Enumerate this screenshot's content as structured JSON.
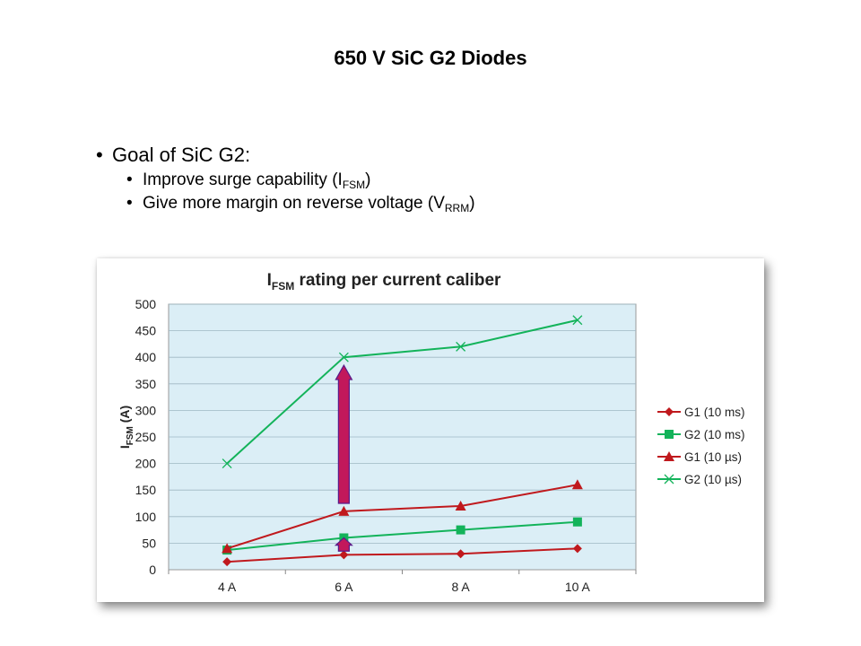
{
  "slide": {
    "title": "650 V SiC G2 Diodes",
    "bullet_main": "Goal of SiC G2:",
    "bullet_sub1": {
      "text": "Improve surge capability (I",
      "sub": "FSM",
      "end": ")"
    },
    "bullet_sub2": {
      "text": "Give more margin on reverse voltage (V",
      "sub": "RRM",
      "end": ")"
    }
  },
  "chart_data": {
    "type": "line",
    "title": {
      "main": "I",
      "sub": "FSM",
      "rest": " rating per current caliber"
    },
    "ylabel": {
      "main": "I",
      "sub": "FSM",
      "rest": " (A)"
    },
    "xlabel": "",
    "categories": [
      "4 A",
      "6 A",
      "8 A",
      "10 A"
    ],
    "ylim": [
      0,
      500
    ],
    "yticks": [
      0,
      50,
      100,
      150,
      200,
      250,
      300,
      350,
      400,
      450,
      500
    ],
    "grid": true,
    "plot_background": "#dbeef6",
    "legend_position": "right",
    "series": [
      {
        "name": "G1 (10 ms)",
        "values": [
          15,
          28,
          30,
          40
        ],
        "color": "#c0191d",
        "marker": "diamond"
      },
      {
        "name": "G2 (10 ms)",
        "values": [
          37,
          60,
          75,
          90
        ],
        "color": "#13b35a",
        "marker": "square"
      },
      {
        "name": "G1 (10 µs)",
        "values": [
          40,
          110,
          120,
          160
        ],
        "color": "#c0191d",
        "marker": "triangle"
      },
      {
        "name": "G2 (10 µs)",
        "values": [
          200,
          400,
          420,
          470
        ],
        "color": "#13b35a",
        "marker": "x"
      }
    ],
    "annotations": [
      {
        "type": "arrow",
        "category": "6 A",
        "from": 125,
        "to": 385,
        "color": "#c2185b"
      },
      {
        "type": "arrow",
        "category": "6 A",
        "from": 35,
        "to": 60,
        "color": "#c2185b"
      }
    ]
  }
}
